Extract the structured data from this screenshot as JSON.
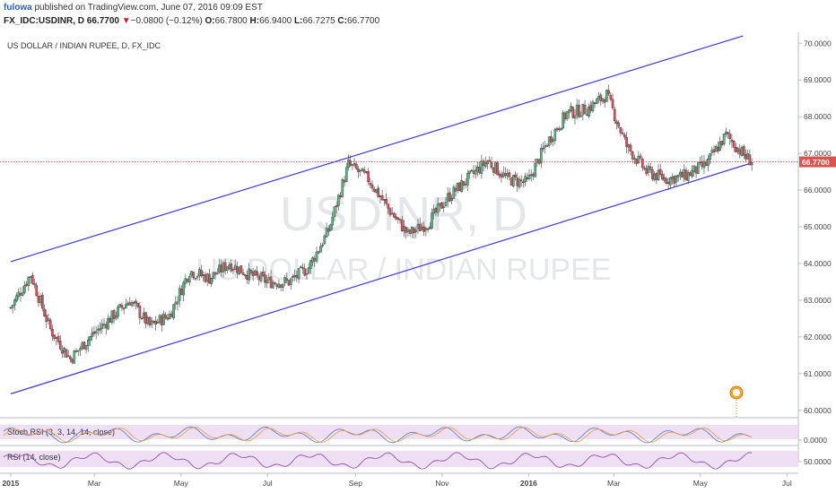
{
  "header": {
    "author": "fulowa",
    "published": " published on TradingView.com, June 07, 2016 09:09 EST",
    "symbol": "FX_IDC:USDINR, D",
    "last": "66.7700",
    "arrow": "▼",
    "change": "−0.0800 (−0.12%)",
    "o_label": "O:",
    "o_value": "66.7800",
    "h_label": "H:",
    "h_value": "66.9400",
    "l_label": "L:",
    "l_value": "66.7275",
    "c_label": "C:",
    "c_value": "66.7700"
  },
  "chart_data": [
    {
      "type": "candlestick",
      "title": "US DOLLAR / INDIAN RUPEE, D, FX_IDC",
      "watermark_symbol": "USDINR, D",
      "watermark_name": "US DOLLAR / INDIAN RUPEE",
      "ylim": [
        59.8,
        70.3
      ],
      "y_ticks": [
        "70.0000",
        "69.0000",
        "68.0000",
        "67.0000",
        "66.0000",
        "65.0000",
        "64.0000",
        "63.0000",
        "62.0000",
        "61.0000",
        "60.0000"
      ],
      "x_ticks": [
        "2015",
        "Mar",
        "May",
        "Jul",
        "Sep",
        "Nov",
        "2016",
        "Mar",
        "May",
        "Jul"
      ],
      "last_price": "66.7700",
      "colors": {
        "up": "#53b987",
        "down": "#eb4d5c",
        "channel": "#3b3bd6",
        "price_line": "#d9534f"
      },
      "channel_lines": [
        {
          "x": [
            "2015-01-01",
            "2016-05-31"
          ],
          "y": [
            64.05,
            70.2
          ]
        },
        {
          "x": [
            "2015-01-01",
            "2016-06-07"
          ],
          "y": [
            60.45,
            66.75
          ]
        }
      ],
      "series": [
        {
          "x": [
            "2015-01-01",
            "2015-01-15",
            "2015-01-29",
            "2015-02-12",
            "2015-02-26",
            "2015-03-12",
            "2015-03-26",
            "2015-04-09",
            "2015-04-23",
            "2015-05-07",
            "2015-05-21",
            "2015-06-04",
            "2015-06-18",
            "2015-07-02",
            "2015-07-16",
            "2015-07-30",
            "2015-08-13",
            "2015-08-27",
            "2015-09-10",
            "2015-09-24",
            "2015-10-08",
            "2015-10-22",
            "2015-11-05",
            "2015-11-19",
            "2015-12-03",
            "2015-12-17",
            "2015-12-31",
            "2016-01-14",
            "2016-01-28",
            "2016-02-11",
            "2016-02-25",
            "2016-03-10",
            "2016-03-24",
            "2016-04-07",
            "2016-04-21",
            "2016-05-05",
            "2016-05-19",
            "2016-06-02",
            "2016-06-07"
          ],
          "close": [
            62.8,
            63.7,
            62.2,
            61.4,
            62.0,
            62.5,
            63.0,
            62.3,
            62.6,
            63.8,
            63.6,
            64.0,
            63.7,
            63.5,
            63.5,
            63.9,
            64.9,
            66.7,
            66.3,
            65.5,
            64.8,
            65.1,
            65.8,
            66.3,
            66.8,
            66.3,
            66.2,
            67.3,
            68.1,
            68.2,
            68.6,
            67.2,
            66.5,
            66.3,
            66.4,
            66.7,
            67.5,
            66.9,
            66.77
          ]
        }
      ]
    },
    {
      "type": "line",
      "title": "Stoch RSI (3, 3, 14, 14, close)",
      "y_ticks": [
        "0.0000"
      ],
      "colors": {
        "k": "#4f79d8",
        "d": "#e89a3c",
        "band": "#ead7f3"
      }
    },
    {
      "type": "line",
      "title": "RSI (14, close)",
      "y_ticks": [
        "50.0000"
      ],
      "colors": {
        "line": "#8a3fa8",
        "band": "#ead7f3"
      }
    }
  ]
}
